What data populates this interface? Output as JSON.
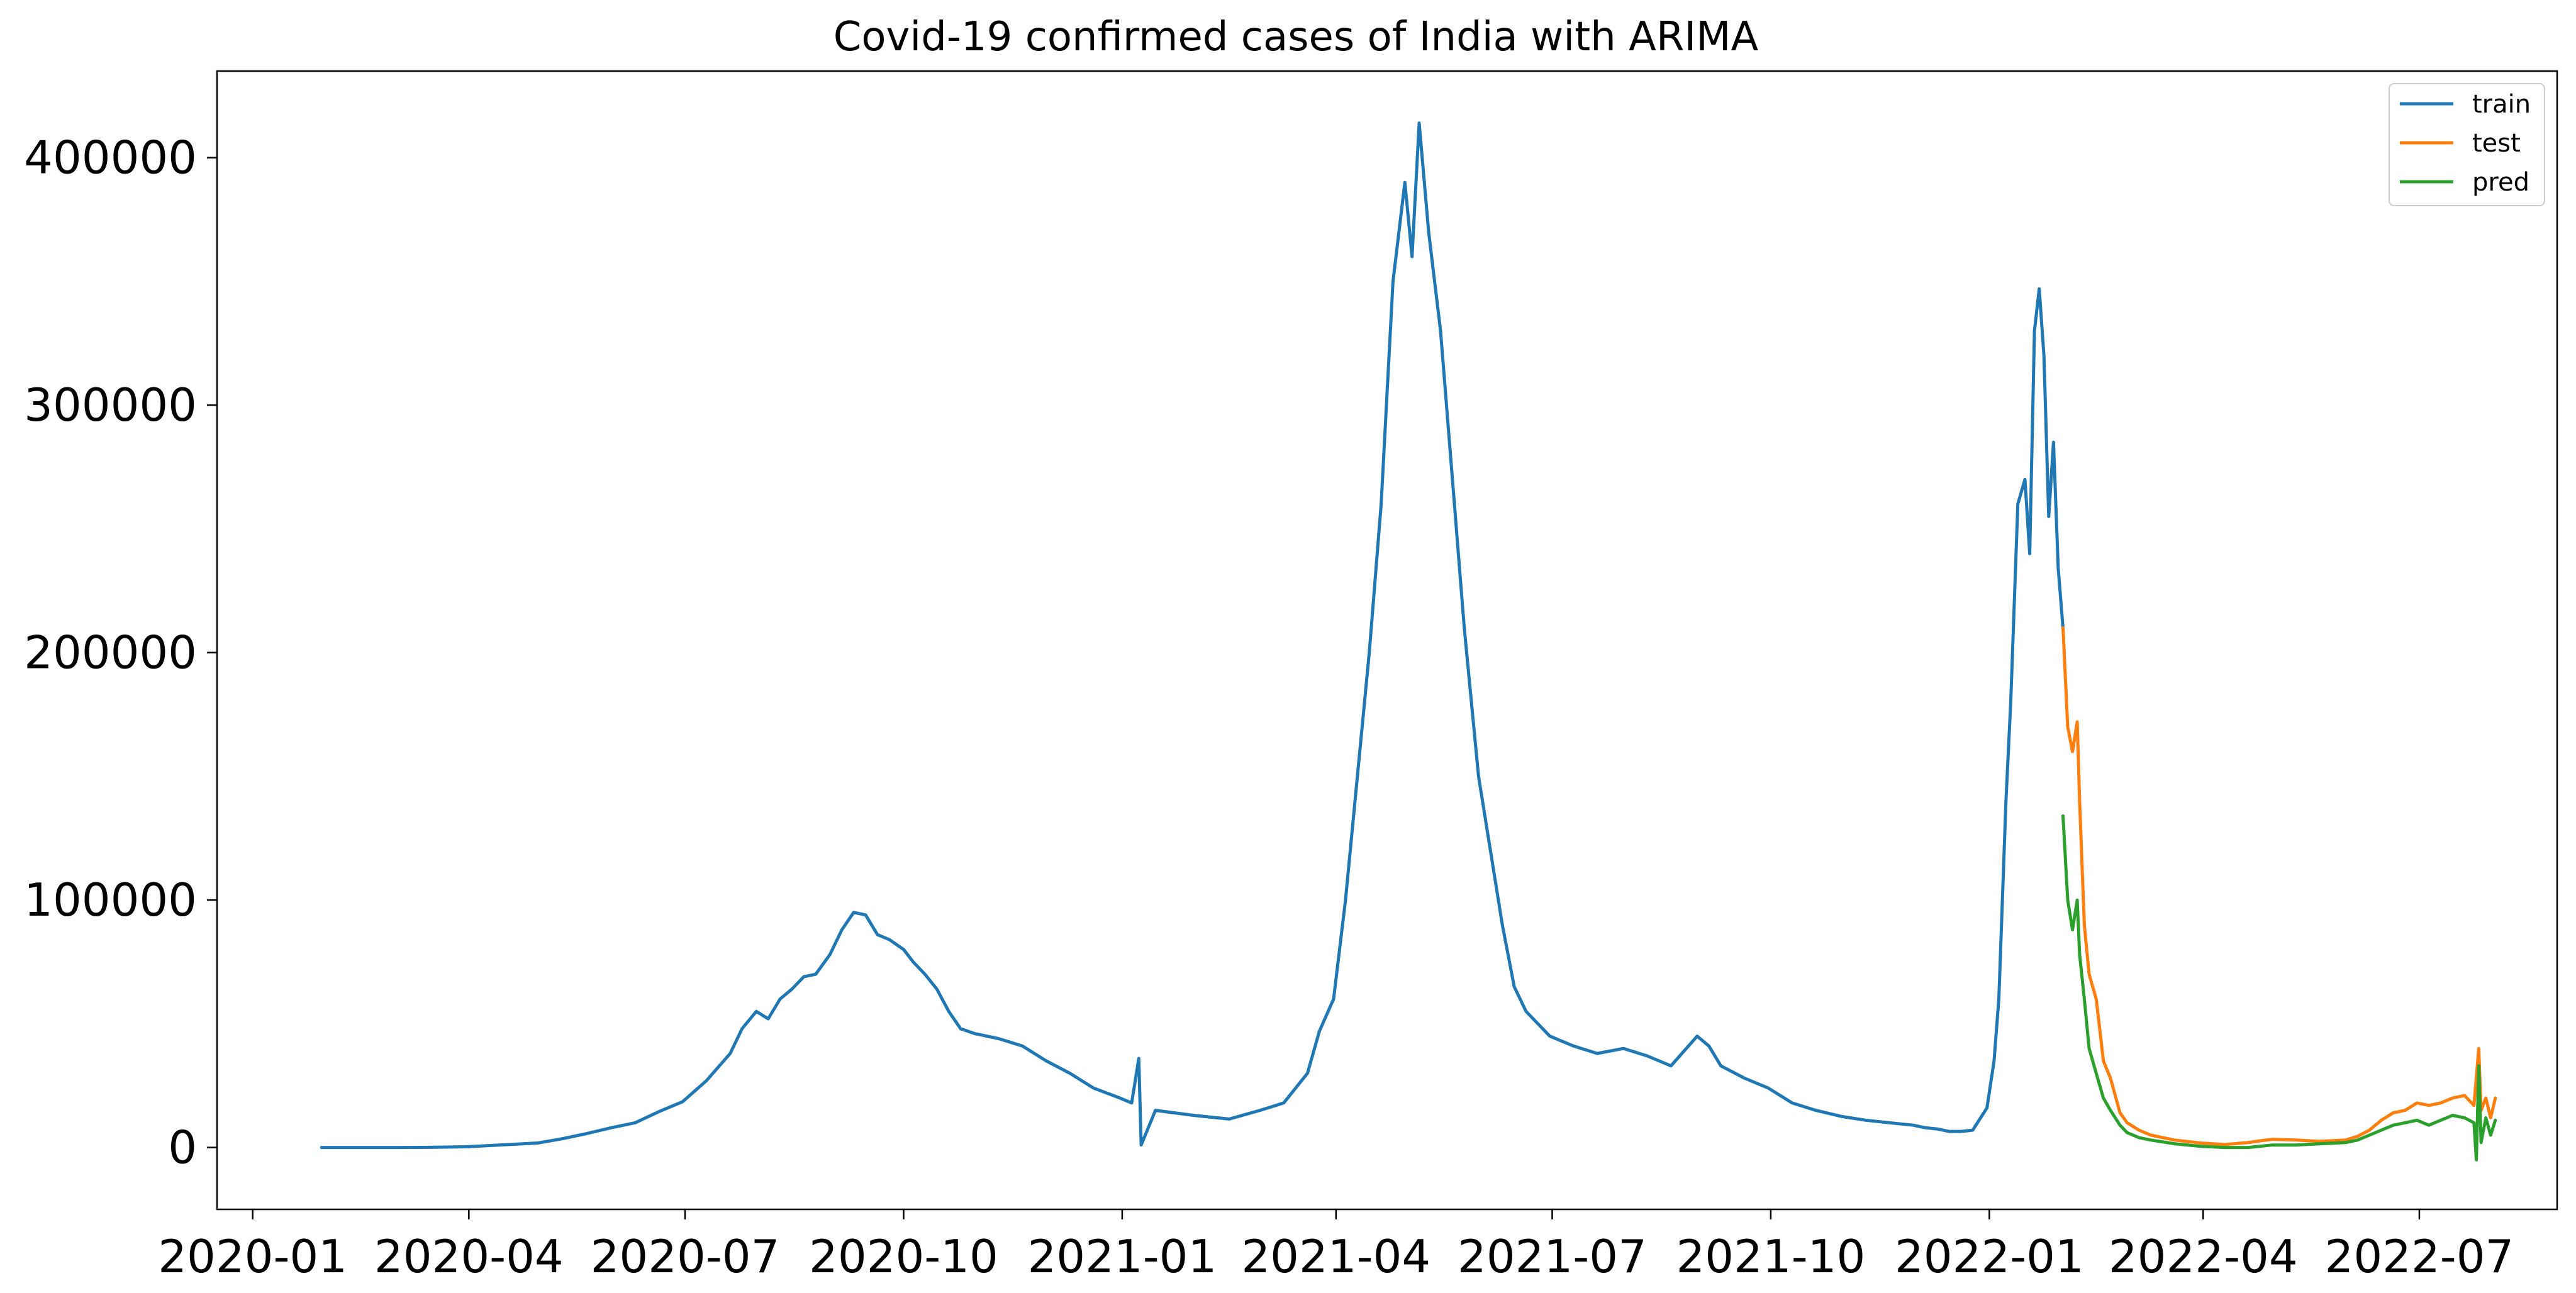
{
  "chart_data": {
    "type": "line",
    "title": "Covid-19 confirmed cases of India with ARIMA",
    "xlabel": "",
    "ylabel": "",
    "xlim": [
      "2019-12-17",
      "2022-08-28"
    ],
    "ylim": [
      -25000,
      435000
    ],
    "x_ticks": [
      "2020-01",
      "2020-04",
      "2020-07",
      "2020-10",
      "2021-01",
      "2021-04",
      "2021-07",
      "2021-10",
      "2022-01",
      "2022-04",
      "2022-07"
    ],
    "y_ticks": [
      0,
      100000,
      200000,
      300000,
      400000
    ],
    "grid": false,
    "legend": {
      "position": "top-right",
      "entries": [
        "train",
        "test",
        "pred"
      ]
    },
    "series": [
      {
        "name": "train",
        "color": "#1f77b4",
        "points": [
          [
            "2020-01-30",
            0
          ],
          [
            "2020-02-15",
            0
          ],
          [
            "2020-03-01",
            0
          ],
          [
            "2020-03-15",
            50
          ],
          [
            "2020-03-31",
            300
          ],
          [
            "2020-04-10",
            800
          ],
          [
            "2020-04-20",
            1300
          ],
          [
            "2020-04-30",
            1800
          ],
          [
            "2020-05-10",
            3500
          ],
          [
            "2020-05-20",
            5500
          ],
          [
            "2020-05-31",
            8000
          ],
          [
            "2020-06-10",
            10000
          ],
          [
            "2020-06-20",
            14500
          ],
          [
            "2020-06-30",
            18500
          ],
          [
            "2020-07-10",
            27000
          ],
          [
            "2020-07-20",
            38000
          ],
          [
            "2020-07-25",
            48000
          ],
          [
            "2020-07-31",
            55000
          ],
          [
            "2020-08-05",
            52000
          ],
          [
            "2020-08-10",
            60000
          ],
          [
            "2020-08-15",
            64000
          ],
          [
            "2020-08-20",
            69000
          ],
          [
            "2020-08-25",
            70000
          ],
          [
            "2020-08-31",
            78000
          ],
          [
            "2020-09-05",
            88000
          ],
          [
            "2020-09-10",
            95000
          ],
          [
            "2020-09-15",
            94000
          ],
          [
            "2020-09-20",
            86000
          ],
          [
            "2020-09-25",
            84000
          ],
          [
            "2020-10-01",
            80000
          ],
          [
            "2020-10-05",
            75000
          ],
          [
            "2020-10-10",
            70000
          ],
          [
            "2020-10-15",
            64000
          ],
          [
            "2020-10-20",
            55000
          ],
          [
            "2020-10-25",
            48000
          ],
          [
            "2020-10-31",
            46000
          ],
          [
            "2020-11-10",
            44000
          ],
          [
            "2020-11-20",
            41000
          ],
          [
            "2020-11-30",
            35000
          ],
          [
            "2020-12-10",
            30000
          ],
          [
            "2020-12-20",
            24000
          ],
          [
            "2020-12-31",
            20000
          ],
          [
            "2021-01-05",
            18000
          ],
          [
            "2021-01-08",
            36000
          ],
          [
            "2021-01-09",
            1000
          ],
          [
            "2021-01-15",
            15000
          ],
          [
            "2021-01-31",
            13000
          ],
          [
            "2021-02-15",
            11500
          ],
          [
            "2021-02-28",
            15000
          ],
          [
            "2021-03-10",
            18000
          ],
          [
            "2021-03-20",
            30000
          ],
          [
            "2021-03-25",
            47000
          ],
          [
            "2021-03-31",
            60000
          ],
          [
            "2021-04-05",
            100000
          ],
          [
            "2021-04-10",
            150000
          ],
          [
            "2021-04-15",
            200000
          ],
          [
            "2021-04-20",
            260000
          ],
          [
            "2021-04-25",
            350000
          ],
          [
            "2021-04-30",
            390000
          ],
          [
            "2021-05-03",
            360000
          ],
          [
            "2021-05-06",
            414000
          ],
          [
            "2021-05-10",
            370000
          ],
          [
            "2021-05-15",
            330000
          ],
          [
            "2021-05-20",
            270000
          ],
          [
            "2021-05-25",
            210000
          ],
          [
            "2021-05-31",
            150000
          ],
          [
            "2021-06-05",
            120000
          ],
          [
            "2021-06-10",
            90000
          ],
          [
            "2021-06-15",
            65000
          ],
          [
            "2021-06-20",
            55000
          ],
          [
            "2021-06-30",
            45000
          ],
          [
            "2021-07-10",
            41000
          ],
          [
            "2021-07-20",
            38000
          ],
          [
            "2021-07-31",
            40000
          ],
          [
            "2021-08-10",
            37000
          ],
          [
            "2021-08-20",
            33000
          ],
          [
            "2021-08-31",
            45000
          ],
          [
            "2021-09-05",
            41000
          ],
          [
            "2021-09-10",
            33000
          ],
          [
            "2021-09-20",
            28000
          ],
          [
            "2021-09-30",
            24000
          ],
          [
            "2021-10-10",
            18000
          ],
          [
            "2021-10-20",
            15000
          ],
          [
            "2021-10-31",
            12500
          ],
          [
            "2021-11-10",
            11000
          ],
          [
            "2021-11-20",
            10000
          ],
          [
            "2021-11-30",
            9000
          ],
          [
            "2021-12-05",
            8000
          ],
          [
            "2021-12-10",
            7500
          ],
          [
            "2021-12-15",
            6500
          ],
          [
            "2021-12-20",
            6500
          ],
          [
            "2021-12-25",
            7000
          ],
          [
            "2021-12-31",
            16000
          ],
          [
            "2022-01-03",
            35000
          ],
          [
            "2022-01-05",
            60000
          ],
          [
            "2022-01-08",
            140000
          ],
          [
            "2022-01-10",
            180000
          ],
          [
            "2022-01-13",
            260000
          ],
          [
            "2022-01-16",
            270000
          ],
          [
            "2022-01-18",
            240000
          ],
          [
            "2022-01-20",
            330000
          ],
          [
            "2022-01-22",
            347000
          ],
          [
            "2022-01-24",
            320000
          ],
          [
            "2022-01-26",
            255000
          ],
          [
            "2022-01-28",
            285000
          ],
          [
            "2022-01-30",
            234000
          ],
          [
            "2022-02-01",
            210000
          ]
        ]
      },
      {
        "name": "test",
        "color": "#ff7f0e",
        "points": [
          [
            "2022-02-01",
            210000
          ],
          [
            "2022-02-03",
            170000
          ],
          [
            "2022-02-05",
            160000
          ],
          [
            "2022-02-07",
            172000
          ],
          [
            "2022-02-08",
            140000
          ],
          [
            "2022-02-10",
            90000
          ],
          [
            "2022-02-12",
            70000
          ],
          [
            "2022-02-15",
            60000
          ],
          [
            "2022-02-18",
            35000
          ],
          [
            "2022-02-21",
            28000
          ],
          [
            "2022-02-25",
            14000
          ],
          [
            "2022-02-28",
            10000
          ],
          [
            "2022-03-05",
            7000
          ],
          [
            "2022-03-10",
            5000
          ],
          [
            "2022-03-20",
            3000
          ],
          [
            "2022-03-31",
            1800
          ],
          [
            "2022-04-10",
            1200
          ],
          [
            "2022-04-20",
            2000
          ],
          [
            "2022-04-25",
            2700
          ],
          [
            "2022-04-30",
            3300
          ],
          [
            "2022-05-10",
            3000
          ],
          [
            "2022-05-20",
            2500
          ],
          [
            "2022-05-31",
            3000
          ],
          [
            "2022-06-05",
            4500
          ],
          [
            "2022-06-10",
            7000
          ],
          [
            "2022-06-15",
            11000
          ],
          [
            "2022-06-20",
            14000
          ],
          [
            "2022-06-25",
            15000
          ],
          [
            "2022-06-30",
            18000
          ],
          [
            "2022-07-05",
            17000
          ],
          [
            "2022-07-10",
            18000
          ],
          [
            "2022-07-15",
            20000
          ],
          [
            "2022-07-20",
            21000
          ],
          [
            "2022-07-24",
            17000
          ],
          [
            "2022-07-26",
            40000
          ],
          [
            "2022-07-27",
            15000
          ],
          [
            "2022-07-29",
            20000
          ],
          [
            "2022-07-31",
            12000
          ],
          [
            "2022-08-02",
            20000
          ]
        ]
      },
      {
        "name": "pred",
        "color": "#2ca02c",
        "points": [
          [
            "2022-02-01",
            134000
          ],
          [
            "2022-02-03",
            100000
          ],
          [
            "2022-02-05",
            88000
          ],
          [
            "2022-02-07",
            100000
          ],
          [
            "2022-02-08",
            78000
          ],
          [
            "2022-02-10",
            60000
          ],
          [
            "2022-02-12",
            40000
          ],
          [
            "2022-02-15",
            30000
          ],
          [
            "2022-02-18",
            20000
          ],
          [
            "2022-02-21",
            15000
          ],
          [
            "2022-02-25",
            9000
          ],
          [
            "2022-02-28",
            6000
          ],
          [
            "2022-03-05",
            4000
          ],
          [
            "2022-03-10",
            3000
          ],
          [
            "2022-03-20",
            1500
          ],
          [
            "2022-03-31",
            500
          ],
          [
            "2022-04-10",
            0
          ],
          [
            "2022-04-20",
            0
          ],
          [
            "2022-04-30",
            1000
          ],
          [
            "2022-05-10",
            1000
          ],
          [
            "2022-05-20",
            1500
          ],
          [
            "2022-05-31",
            2000
          ],
          [
            "2022-06-05",
            3000
          ],
          [
            "2022-06-10",
            5000
          ],
          [
            "2022-06-15",
            7000
          ],
          [
            "2022-06-20",
            9000
          ],
          [
            "2022-06-25",
            10000
          ],
          [
            "2022-06-30",
            11000
          ],
          [
            "2022-07-05",
            9000
          ],
          [
            "2022-07-10",
            11000
          ],
          [
            "2022-07-15",
            13000
          ],
          [
            "2022-07-20",
            12000
          ],
          [
            "2022-07-24",
            10000
          ],
          [
            "2022-07-25",
            -5000
          ],
          [
            "2022-07-26",
            33000
          ],
          [
            "2022-07-27",
            2000
          ],
          [
            "2022-07-29",
            12000
          ],
          [
            "2022-07-31",
            5000
          ],
          [
            "2022-08-02",
            11000
          ]
        ]
      }
    ]
  }
}
